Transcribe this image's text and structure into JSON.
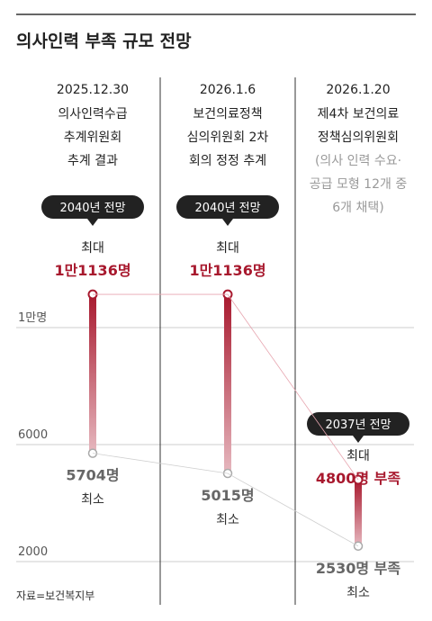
{
  "title": "의사인력 부족 규모 전망",
  "source": "자료=보건복지부",
  "colors": {
    "accent": "#a8192e",
    "bar_light": "#e6b8bf",
    "grid": "#cccccc",
    "divider": "#333333",
    "bubble": "#222222",
    "muted": "#999999"
  },
  "chart_data": {
    "type": "range",
    "title": "의사인력 부족 규모 전망",
    "y_ticks": [
      {
        "value": 10000,
        "label": "1만명"
      },
      {
        "value": 6000,
        "label": "6000"
      },
      {
        "value": 2000,
        "label": "2000"
      }
    ],
    "ylim": [
      1000,
      11500
    ],
    "series": [
      {
        "date": "2025.12.30",
        "desc": [
          "의사인력수급",
          "추계위원회",
          "추계 결과"
        ],
        "note": [],
        "badge": "2040년 전망",
        "max_caption": "최대",
        "max_value": 11136,
        "max_label": "1만1136명",
        "min_value": 5704,
        "min_label": "5704명",
        "min_caption": "최소"
      },
      {
        "date": "2026.1.6",
        "desc": [
          "보건의료정책",
          "심의위원회 2차",
          "회의 정정 추계"
        ],
        "note": [],
        "badge": "2040년 전망",
        "max_caption": "최대",
        "max_value": 11136,
        "max_label": "1만1136명",
        "min_value": 5015,
        "min_label": "5015명",
        "min_caption": "최소"
      },
      {
        "date": "2026.1.20",
        "desc": [
          "제4차 보건의료",
          "정책심의위원회"
        ],
        "note": [
          "(의사 인력 수요·",
          "공급 모형 12개 중",
          "6개 채택)"
        ],
        "badge": "2037년 전망",
        "max_caption": "최대",
        "max_value": 4800,
        "max_label": "4800명 부족",
        "min_value": 2530,
        "min_label": "2530명 부족",
        "min_caption": "최소"
      }
    ]
  }
}
